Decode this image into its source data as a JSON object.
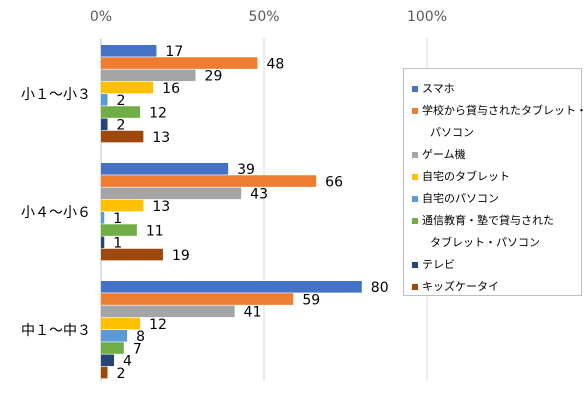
{
  "chart_data": {
    "type": "bar",
    "orientation": "horizontal",
    "axis": {
      "ticks": [
        "0%",
        "50%",
        "100%"
      ],
      "xlim": [
        0,
        100
      ],
      "grid": true
    },
    "categories": [
      "小１～小３",
      "小４～小６",
      "中１～中３"
    ],
    "series": [
      {
        "name": "スマホ",
        "color": "#4472c4",
        "values": [
          17,
          39,
          80
        ]
      },
      {
        "name": "学校から貸与されたタブレット・パソコン",
        "color": "#ed7d31",
        "values": [
          48,
          66,
          59
        ]
      },
      {
        "name": "ゲーム機",
        "color": "#a5a5a5",
        "values": [
          29,
          43,
          41
        ]
      },
      {
        "name": "自宅のタブレット",
        "color": "#ffc000",
        "values": [
          16,
          13,
          12
        ]
      },
      {
        "name": "自宅のパソコン",
        "color": "#5b9bd5",
        "values": [
          2,
          1,
          8
        ]
      },
      {
        "name": "通信教育・塾で貸与されたタブレット・パソコン",
        "color": "#70ad47",
        "values": [
          12,
          11,
          7
        ]
      },
      {
        "name": "テレビ",
        "color": "#264478",
        "values": [
          2,
          1,
          4
        ]
      },
      {
        "name": "キッズケータイ",
        "color": "#9e480e",
        "values": [
          13,
          19,
          2
        ]
      }
    ],
    "legend": {
      "placement": "right",
      "lines": [
        [
          "スマホ"
        ],
        [
          "学校から貸与されたタブレット・",
          "パソコン"
        ],
        [
          "ゲーム機"
        ],
        [
          "自宅のタブレット"
        ],
        [
          "自宅のパソコン"
        ],
        [
          "通信教育・塾で貸与された",
          "タブレット・パソコン"
        ],
        [
          "テレビ"
        ],
        [
          "キッズケータイ"
        ]
      ]
    }
  }
}
